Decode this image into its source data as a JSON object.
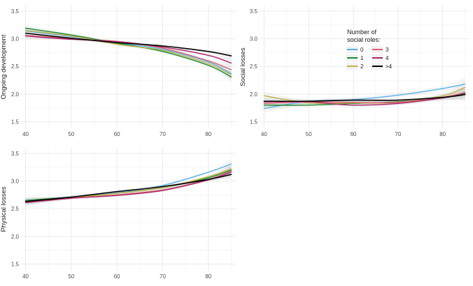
{
  "legend": {
    "title_line1": "Number of",
    "title_line2": "social roles:",
    "entries": [
      {
        "label": "0",
        "color": "#56B4E9"
      },
      {
        "label": "1",
        "color": "#1B8A2B"
      },
      {
        "label": "2",
        "color": "#BDB24A"
      },
      {
        "label": "3",
        "color": "#E0606E"
      },
      {
        "label": "4",
        "color": "#B0246A"
      },
      {
        "label": ">4",
        "color": "#000000"
      }
    ]
  },
  "chart_data": [
    {
      "type": "line",
      "title": "",
      "xlabel": "",
      "ylabel": "Ongoing development",
      "xlim": [
        39,
        86
      ],
      "ylim": [
        1.38,
        3.6
      ],
      "xticks": [
        "40",
        "50",
        "60",
        "70",
        "80"
      ],
      "yticks": [
        "1.5",
        "2.0",
        "2.5",
        "3.0",
        "3.5"
      ],
      "x": [
        40,
        50,
        60,
        70,
        80,
        85
      ],
      "series": [
        {
          "name": "0",
          "values": [
            3.14,
            3.04,
            2.92,
            2.81,
            2.58,
            2.37
          ]
        },
        {
          "name": "1",
          "values": [
            3.19,
            3.07,
            2.92,
            2.77,
            2.52,
            2.31
          ]
        },
        {
          "name": "2",
          "values": [
            3.15,
            3.05,
            2.9,
            2.79,
            2.55,
            2.35
          ]
        },
        {
          "name": "3",
          "values": [
            3.06,
            3.0,
            2.95,
            2.83,
            2.6,
            2.44
          ]
        },
        {
          "name": "4",
          "values": [
            3.05,
            2.99,
            2.95,
            2.85,
            2.7,
            2.56
          ]
        },
        {
          "name": ">4",
          "values": [
            3.1,
            3.01,
            2.93,
            2.87,
            2.77,
            2.69
          ]
        }
      ]
    },
    {
      "type": "line",
      "title": "",
      "xlabel": "",
      "ylabel": "Social losses",
      "xlim": [
        39,
        86
      ],
      "ylim": [
        1.38,
        3.6
      ],
      "xticks": [
        "40",
        "50",
        "60",
        "70",
        "80"
      ],
      "yticks": [
        "1.5",
        "2.0",
        "2.5",
        "3.0",
        "3.5"
      ],
      "x": [
        40,
        50,
        60,
        70,
        80,
        85
      ],
      "series": [
        {
          "name": "0",
          "values": [
            1.74,
            1.87,
            1.9,
            1.98,
            2.1,
            2.18
          ]
        },
        {
          "name": "1",
          "values": [
            1.8,
            1.8,
            1.83,
            1.86,
            1.93,
            2.02
          ]
        },
        {
          "name": "2",
          "values": [
            1.97,
            1.84,
            1.84,
            1.85,
            1.97,
            2.12
          ]
        },
        {
          "name": "3",
          "values": [
            1.83,
            1.86,
            1.85,
            1.85,
            1.94,
            2.03
          ]
        },
        {
          "name": "4",
          "values": [
            1.86,
            1.86,
            1.8,
            1.83,
            1.93,
            2.0
          ]
        },
        {
          "name": ">4",
          "values": [
            1.87,
            1.87,
            1.89,
            1.89,
            1.94,
            1.99
          ]
        }
      ]
    },
    {
      "type": "line",
      "title": "",
      "xlabel": "",
      "ylabel": "Physical losses",
      "xlim": [
        39,
        86
      ],
      "ylim": [
        1.38,
        3.6
      ],
      "xticks": [
        "40",
        "50",
        "60",
        "70",
        "80"
      ],
      "yticks": [
        "1.5",
        "2.0",
        "2.5",
        "3.0",
        "3.5"
      ],
      "x": [
        40,
        50,
        60,
        70,
        80,
        85
      ],
      "series": [
        {
          "name": "0",
          "values": [
            2.64,
            2.71,
            2.79,
            2.92,
            3.16,
            3.31
          ]
        },
        {
          "name": "1",
          "values": [
            2.65,
            2.71,
            2.78,
            2.88,
            3.06,
            3.2
          ]
        },
        {
          "name": "2",
          "values": [
            2.63,
            2.7,
            2.78,
            2.88,
            3.08,
            3.22
          ]
        },
        {
          "name": "3",
          "values": [
            2.62,
            2.69,
            2.75,
            2.84,
            3.03,
            3.18
          ]
        },
        {
          "name": "4",
          "values": [
            2.61,
            2.69,
            2.74,
            2.83,
            3.02,
            3.16
          ]
        },
        {
          "name": ">4",
          "values": [
            2.63,
            2.71,
            2.81,
            2.9,
            3.03,
            3.12
          ]
        }
      ]
    }
  ]
}
